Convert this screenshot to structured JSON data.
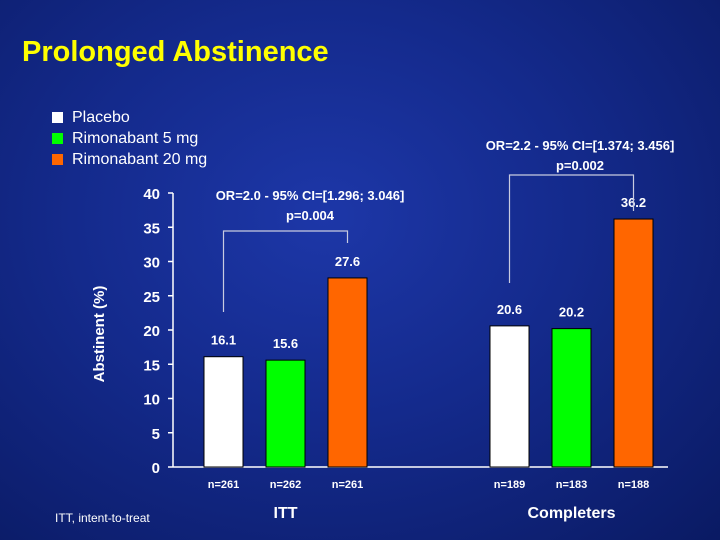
{
  "title": "Prolonged Abstinence",
  "footnote": "ITT, intent-to-treat",
  "colors": {
    "background": "#142a8c",
    "title": "#ffff00",
    "placebo": "#ffffff",
    "rimonabant5": "#00ff00",
    "rimonabant20": "#ff6600"
  },
  "legend": [
    {
      "label": "Placebo",
      "color": "#ffffff"
    },
    {
      "label": "Rimonabant 5 mg",
      "color": "#00ff00"
    },
    {
      "label": "Rimonabant 20 mg",
      "color": "#ff6600"
    }
  ],
  "chart_data": {
    "type": "bar",
    "title": "",
    "xlabel": "",
    "ylabel": "Abstinent (%)",
    "ylim": [
      0,
      40
    ],
    "yticks": [
      0,
      5,
      10,
      15,
      20,
      25,
      30,
      35,
      40
    ],
    "grid": false,
    "legend_position": "top-left",
    "categories": [
      "ITT",
      "Completers"
    ],
    "series": [
      {
        "name": "Placebo",
        "color": "#ffffff",
        "values": [
          16.1,
          20.6
        ],
        "n": [
          "n=261",
          "n=189"
        ]
      },
      {
        "name": "Rimonabant 5 mg",
        "color": "#00ff00",
        "values": [
          15.6,
          20.2
        ],
        "n": [
          "n=262",
          "n=183"
        ]
      },
      {
        "name": "Rimonabant 20 mg",
        "color": "#ff6600",
        "values": [
          27.6,
          36.2
        ],
        "n": [
          "n=261",
          "n=188"
        ]
      }
    ],
    "annotations": [
      {
        "group": "ITT",
        "line1": "OR=2.0 - 95% CI=[1.296; 3.046]",
        "line2": "p=0.004"
      },
      {
        "group": "Completers",
        "line1": "OR=2.2 - 95% CI=[1.374; 3.456]",
        "line2": "p=0.002"
      }
    ]
  }
}
